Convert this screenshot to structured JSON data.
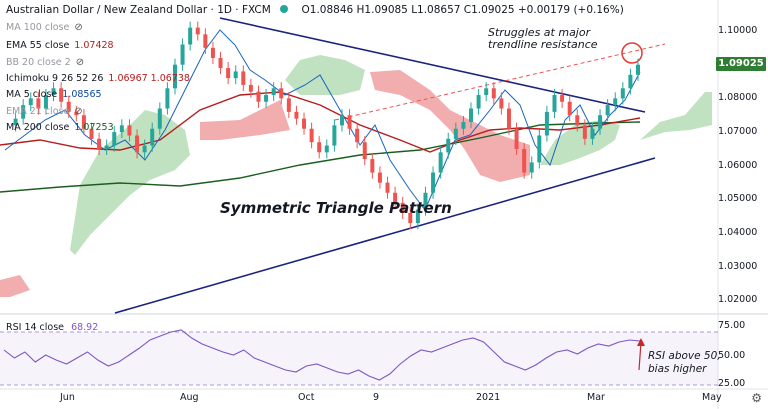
{
  "header": {
    "symbol": "Australian Dollar / New Zealand Dollar · 1D · FXCM",
    "ohlc": "O1.08846 H1.09085 L1.08657 C1.09025 +0.00179 (+0.16%)"
  },
  "indicators": [
    {
      "name": "MA 100 close",
      "value": "",
      "hidden": true
    },
    {
      "name": "EMA 55 close",
      "value": "1.07428",
      "color": "#b71c1c"
    },
    {
      "name": "BB 20 close 2",
      "value": "",
      "hidden": true
    },
    {
      "name": "Ichimoku 9 26 52 26",
      "value": "1.06967  1.06738",
      "color": "#b71c1c"
    },
    {
      "name": "MA 5 close",
      "value": "1.08565",
      "color": "#0d47a1"
    },
    {
      "name": "EMA 21 close",
      "value": "",
      "hidden": true
    },
    {
      "name": "MA 200 close",
      "value": "1.07253",
      "color": "#1b5e20"
    }
  ],
  "annotations": {
    "pattern": "Symmetric Triangle Pattern",
    "resistance_line1": "Struggles at major",
    "resistance_line2": "trendline resistance",
    "rsi_line1": "RSI above 50,",
    "rsi_line2": "bias higher"
  },
  "price_axis": [
    "1.10000",
    "1.09025",
    "1.08000",
    "1.07000",
    "1.06000",
    "1.05000",
    "1.04000",
    "1.03000",
    "1.02000"
  ],
  "current_price": "1.09025",
  "rsi": {
    "label": "RSI 14 close",
    "value": "68.92",
    "axis": [
      "75.00",
      "50.00",
      "25.00"
    ]
  },
  "time_axis": [
    "Jun",
    "Aug",
    "Oct",
    "9",
    "2021",
    "Mar",
    "May"
  ],
  "colors": {
    "up": "#26a69a",
    "down": "#ef5350",
    "cloud_green": "#a5d6a7",
    "cloud_red": "#ef9a9a",
    "trend": "#1a237e",
    "rsi": "#7e57c2"
  },
  "icons": {
    "visibility": "eye-off-icon",
    "settings": "gear-icon",
    "live": "live-dot-icon"
  }
}
